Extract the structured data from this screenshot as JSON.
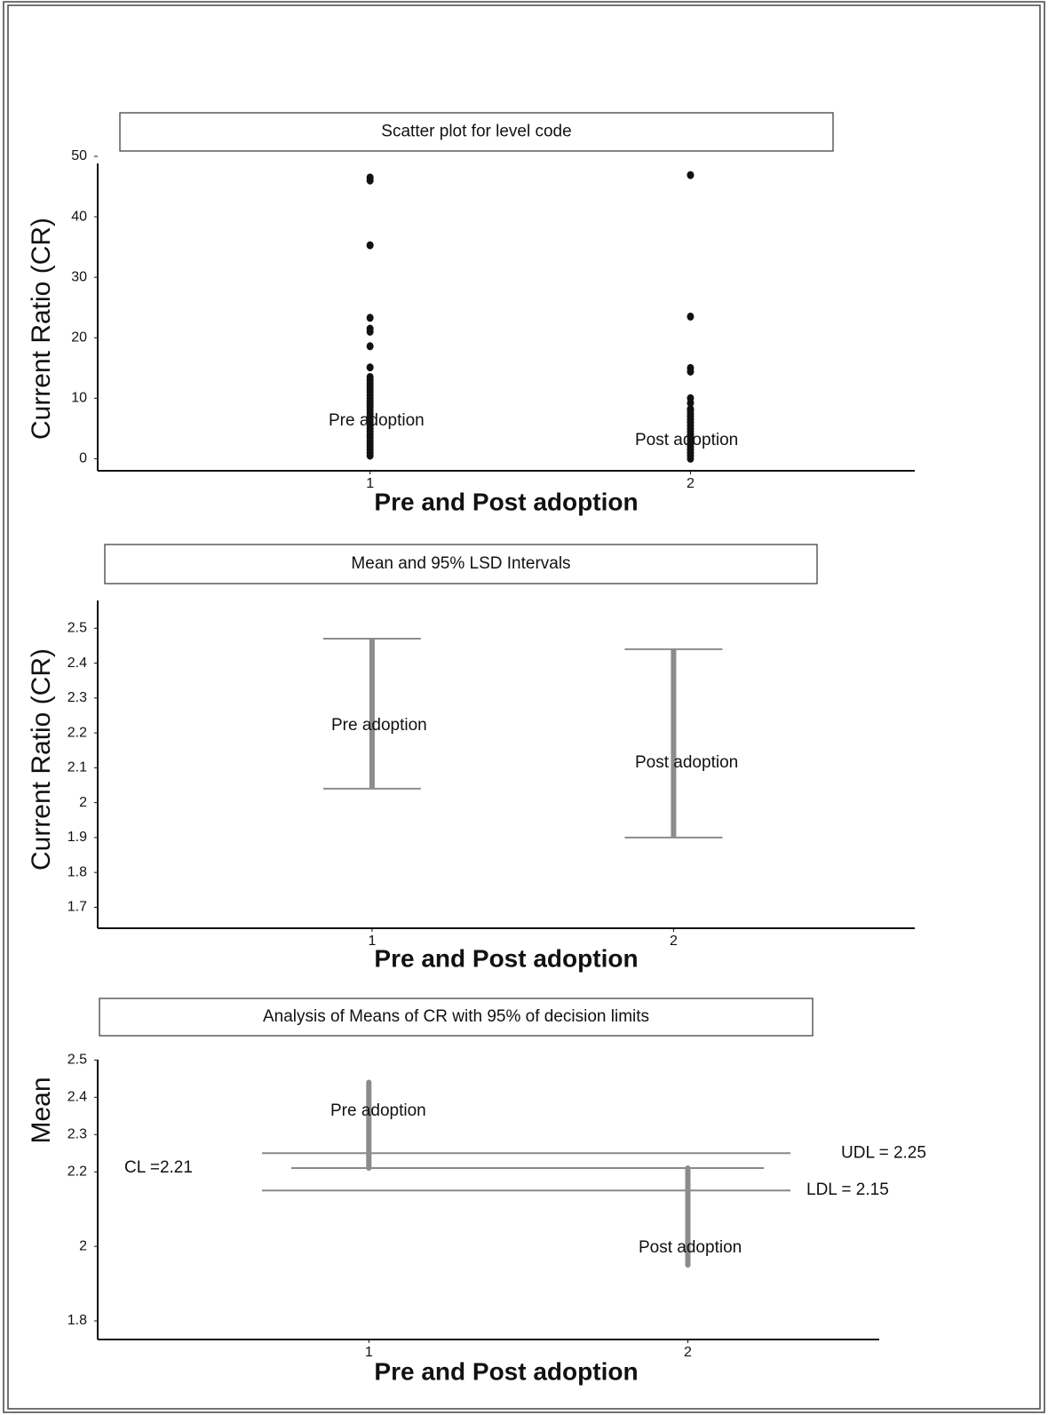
{
  "chart_data": [
    {
      "type": "scatter",
      "title": "Scatter plot for level code",
      "y_label": "Current Ratio (CR)",
      "x_label": "Pre and Post adoption",
      "annotations": [
        "Pre adoption",
        "Post adoption"
      ],
      "color": "#111",
      "x": [
        1,
        1,
        1,
        1,
        1,
        1,
        1,
        1,
        1,
        1,
        1,
        1,
        1,
        1,
        1,
        1,
        1,
        1,
        1,
        1,
        1,
        1,
        1,
        1,
        1,
        1,
        1,
        1,
        1,
        1,
        1,
        1,
        1,
        1,
        1,
        2,
        2,
        2,
        2,
        2,
        2,
        2,
        2,
        2,
        2,
        2,
        2,
        2,
        2,
        2,
        2,
        2,
        2,
        2,
        2,
        2,
        2,
        2,
        2
      ],
      "y": [
        46.5,
        46,
        35.3,
        23.3,
        21.5,
        21,
        18.6,
        15.1,
        0.5,
        1,
        1.5,
        2,
        2.5,
        3,
        3.5,
        4,
        4.5,
        5,
        5.5,
        6,
        6.5,
        7,
        7.5,
        8,
        8.5,
        9,
        9.5,
        10,
        10.5,
        11,
        11.5,
        12,
        12.5,
        13,
        13.5,
        46.9,
        23.5,
        15,
        14.4,
        10,
        9.2,
        8.2,
        0,
        0.5,
        1,
        1.5,
        2,
        2.5,
        3,
        3.5,
        4,
        4.5,
        5,
        5.5,
        6,
        6.5,
        7,
        7.5,
        8
      ],
      "xlim": [
        0.15,
        2.7
      ],
      "xticks": [
        1,
        2
      ],
      "ylim": [
        -2,
        50
      ],
      "yticks": [
        0,
        10,
        20,
        30,
        40,
        50
      ]
    },
    {
      "type": "interval",
      "title": "Mean and 95% LSD Intervals",
      "y_label": "Current Ratio (CR)",
      "x_label": "Pre and Post adoption",
      "annotations": [
        "Pre adoption",
        "Post adoption"
      ],
      "color": "#8c8c8c",
      "x": [
        1,
        2
      ],
      "low": [
        2.04,
        1.9
      ],
      "high": [
        2.47,
        2.44
      ],
      "xlim": [
        0.09,
        2.8
      ],
      "xticks": [
        1,
        2
      ],
      "ylim": [
        1.64,
        2.6
      ],
      "yticks": [
        1.7,
        1.8,
        1.9,
        2.0,
        2.1,
        2.2,
        2.3,
        2.4,
        2.5
      ]
    },
    {
      "type": "anom",
      "title": "Analysis of Means of CR with 95% of decision limits",
      "y_label": "Mean",
      "x_label": "Pre and Post adoption",
      "annotations": [
        "Pre adoption",
        "Post adoption"
      ],
      "color": "#8c8c8c",
      "x": [
        1,
        2
      ],
      "values": [
        2.44,
        1.95
      ],
      "limits": [
        {
          "value": 2.25,
          "label": "UDL = 2.25"
        },
        {
          "value": 2.21,
          "label": "CL =2.21"
        },
        {
          "value": 2.15,
          "label": "LDL = 2.15"
        }
      ],
      "xlim": [
        0.15,
        2.6
      ],
      "xticks": [
        1,
        2
      ],
      "ylim": [
        1.75,
        2.52
      ],
      "yticks": [
        1.8,
        2.0,
        2.2,
        2.3,
        2.4,
        2.5
      ]
    }
  ]
}
